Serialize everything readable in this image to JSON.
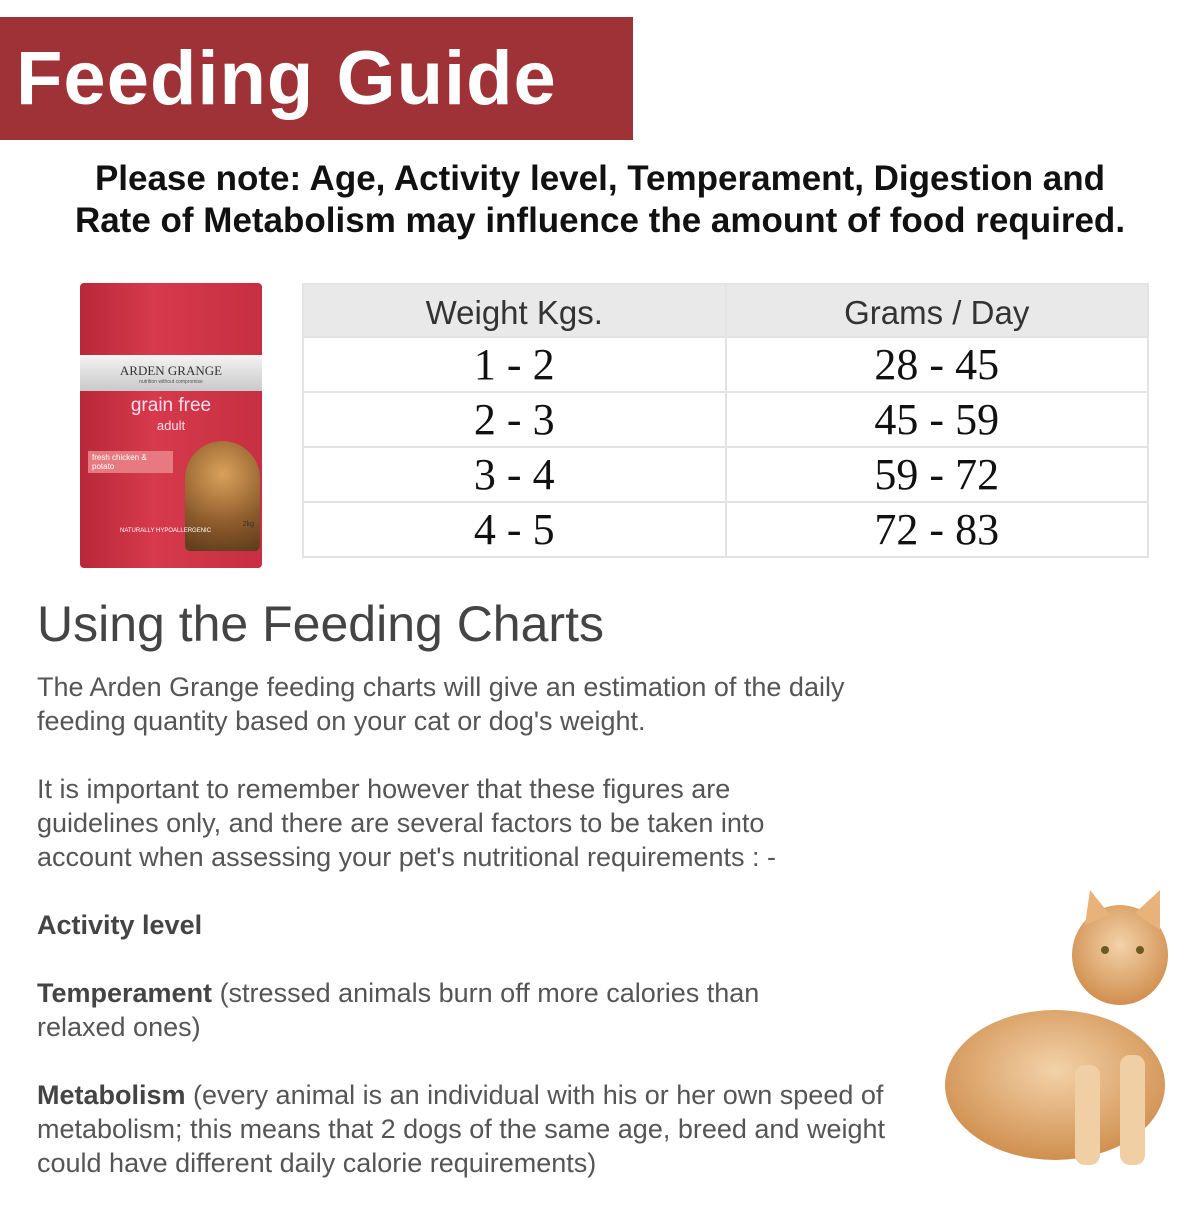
{
  "banner": {
    "title": "Feeding Guide",
    "color": "#9e3236"
  },
  "note": {
    "line1": "Please note: Age, Activity level, Temperament, Digestion and",
    "line2": "Rate of Metabolism may influence the amount of food required."
  },
  "product": {
    "brand": "ARDEN GRANGE",
    "tagline": "nutrition without compromise",
    "name": "grain free",
    "variant": "adult",
    "flavour": "fresh chicken & potato",
    "claim": "NATURALLY HYPOALLERGENIC",
    "weight": "2kg"
  },
  "table": {
    "headers": [
      "Weight Kgs.",
      "Grams / Day"
    ],
    "rows": [
      [
        "1 - 2",
        "28 - 45"
      ],
      [
        "2 - 3",
        "45 - 59"
      ],
      [
        "3 - 4",
        "59 - 72"
      ],
      [
        "4 - 5",
        "72 - 83"
      ]
    ]
  },
  "section": {
    "title": "Using the Feeding Charts",
    "p1": "The Arden Grange feeding charts will give an estimation of the daily feeding quantity based on your cat or dog's weight.",
    "p2": "It is important to remember however that these figures are guidelines only, and there are several factors to be taken into account when assessing your pet's nutritional requirements : -",
    "activity": "Activity level",
    "temperament_label": "Temperament",
    "temperament_text": " (stressed animals burn off more calories than relaxed ones)",
    "metabolism_label": "Metabolism",
    "metabolism_text": " (every animal is an individual with his or her own speed of metabolism; this means that 2 dogs of the same age, breed and weight could have different daily calorie requirements)"
  }
}
